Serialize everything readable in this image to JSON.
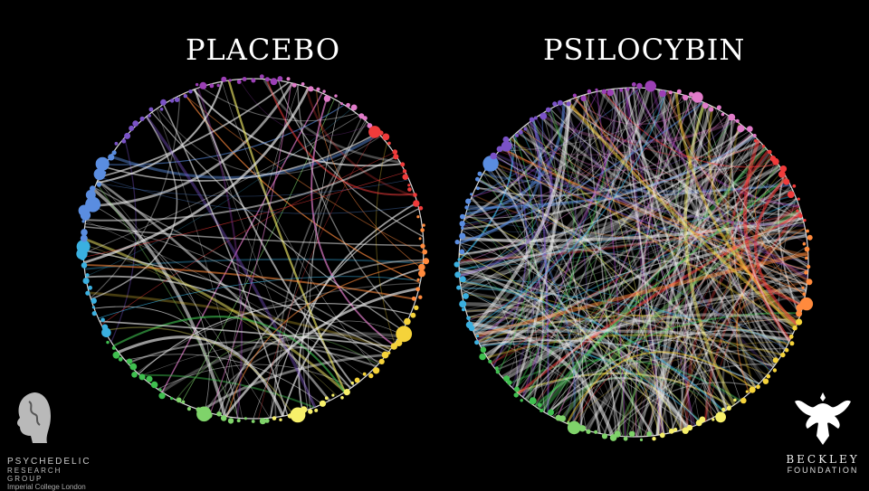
{
  "titles": {
    "left": "PLACEBO",
    "right": "PSILOCYBIN"
  },
  "logos": {
    "left": {
      "line1": "PSYCHEDELIC",
      "line2": "RESEARCH GROUP",
      "line3": "Imperial College London"
    },
    "right": {
      "line1": "BECKLEY",
      "line2": "FOUNDATION"
    }
  },
  "colors": {
    "palette": [
      "#9b3fb5",
      "#e07bc9",
      "#ef3b3b",
      "#ff8a3d",
      "#f5d33a",
      "#f7f06a",
      "#7fd36a",
      "#3fbf4f",
      "#3ab0e0",
      "#5a8de0",
      "#7a52c7"
    ],
    "background": "#000000"
  },
  "networks": {
    "left": {
      "edge_count": 90,
      "edge_opacity": 0.55
    },
    "right": {
      "edge_count": 320,
      "edge_opacity": 0.45
    }
  }
}
